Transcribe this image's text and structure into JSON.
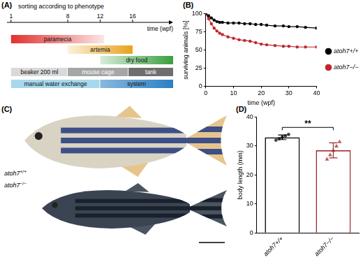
{
  "panel_labels": [
    "(A)",
    "(B)",
    "(C)",
    "(D)"
  ],
  "timeline": {
    "title": "sorting according to phenotype",
    "axis_label": "time (wpf)",
    "xlim": [
      0.5,
      21
    ],
    "ticks": [
      1,
      8,
      12,
      16
    ],
    "rows": [
      [
        {
          "label": "paramecia",
          "start": 1,
          "end": 12.5,
          "color": "#e0312f"
        }
      ],
      [
        {
          "label": "artemia",
          "start": 8,
          "end": 16,
          "color": "#e8a21c"
        }
      ],
      [
        {
          "label": "dry food",
          "start": 12,
          "end": 21,
          "color": "#3aa040"
        }
      ],
      [
        {
          "label": "beaker 200 ml",
          "start": 1,
          "end": 8,
          "color": "#d9d9d9"
        },
        {
          "label": "mouse cage",
          "start": 8,
          "end": 15.5,
          "color": "#a6a6a6"
        },
        {
          "label": "tank",
          "start": 15.5,
          "end": 21,
          "color": "#6e6e6e"
        }
      ],
      [
        {
          "label": "manual water exchange",
          "start": 1,
          "end": 12,
          "color": "#a8d8ee"
        },
        {
          "label": "system",
          "start": 12,
          "end": 21,
          "color": "#2a7fc4"
        }
      ]
    ]
  },
  "photo": {
    "labels": [
      "atoh7+/+",
      "atoh7−/−"
    ]
  },
  "chart_data": [
    {
      "type": "line",
      "xlabel": "time (wpf)",
      "ylabel": "surviving animals [%]",
      "x": [
        0,
        1,
        2,
        3,
        4,
        5,
        6,
        8,
        10,
        12,
        14,
        16,
        18,
        20,
        22,
        25,
        28,
        30,
        33,
        36,
        40
      ],
      "series": [
        {
          "name": "atoh7+/+",
          "color": "#000000",
          "marker": "circle",
          "values": [
            100,
            97,
            94,
            91,
            89,
            88,
            88,
            87,
            87,
            87,
            86,
            86,
            85,
            85,
            84,
            83,
            83,
            82,
            82,
            81,
            80
          ]
        },
        {
          "name": "atoh7−/−",
          "color": "#c0272d",
          "marker": "circle",
          "values": [
            100,
            93,
            86,
            80,
            76,
            73,
            71,
            68,
            66,
            64,
            63,
            62,
            60,
            58,
            57,
            56,
            55,
            55,
            54,
            54,
            54
          ]
        }
      ],
      "xlim": [
        0,
        40
      ],
      "xticks": [
        0,
        10,
        20,
        30,
        40
      ],
      "ylim": [
        0,
        100
      ],
      "yticks": [
        0,
        25,
        50,
        75,
        100
      ],
      "grid": false,
      "legend": "right"
    },
    {
      "type": "bar",
      "ylabel": "body length (mm)",
      "categories": [
        "atoh7+/+",
        "atoh7−/−"
      ],
      "values": [
        33,
        28.5
      ],
      "errors": [
        0.8,
        2.6
      ],
      "colors": [
        "#000000",
        "#a0282d"
      ],
      "points": [
        {
          "values": [
            32,
            32.5,
            33,
            33.5,
            34
          ],
          "marker": "circle"
        },
        {
          "values": [
            25.5,
            27,
            28.5,
            30,
            31.5
          ],
          "marker": "triangle"
        }
      ],
      "annotations": [
        {
          "text": "**",
          "between": [
            "atoh7+/+",
            "atoh7−/−"
          ]
        }
      ],
      "ylim": [
        0,
        40
      ],
      "yticks": [
        0,
        10,
        20,
        30,
        40
      ],
      "grid": false
    }
  ]
}
